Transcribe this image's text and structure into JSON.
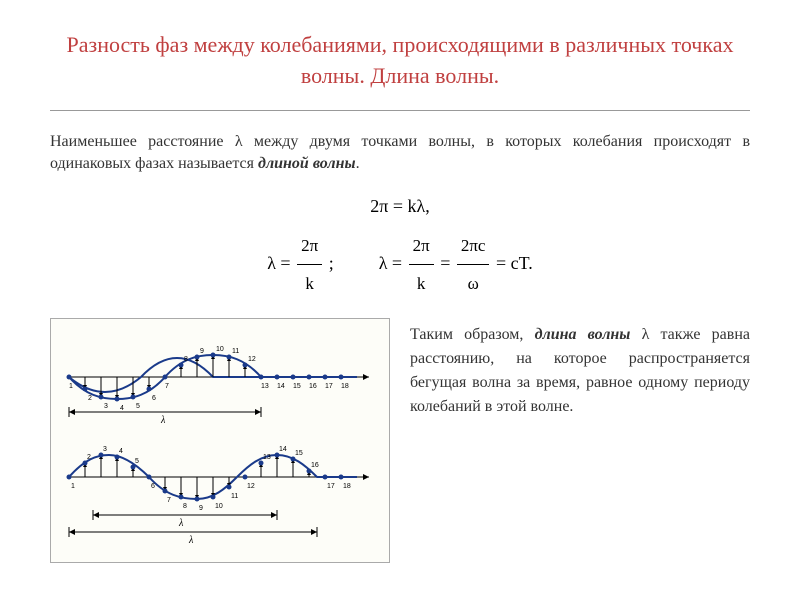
{
  "title": "Разность фаз между колебаниями, происходящими в различных точках волны. Длина волны.",
  "definition": {
    "prefix": "Наименьшее расстояние λ между двумя точками волны, в которых колебания происходят в одинаковых фазах называется ",
    "term": "длиной волны",
    "suffix": "."
  },
  "formulas": {
    "line1": "2π = kλ,",
    "line2_lambda": "λ = ",
    "line2_sep": ";",
    "line2_sep2": " = ",
    "line2_end": " = cT.",
    "frac1_num": "2π",
    "frac1_den": "k",
    "frac2_num": "2π",
    "frac2_den": "k",
    "frac3_num": "2πc",
    "frac3_den": "ω"
  },
  "side_text": {
    "prefix": "Таким образом, ",
    "term": "длина волны",
    "body": " λ также равна расстоянию, на которое распространяется бегущая волна за время, равное одному периоду колебаний в этой волне."
  },
  "wave": {
    "line_color": "#1a3a8a",
    "dot_color": "#1a3a8a",
    "axis_color": "#000000",
    "wave_amplitude": 22,
    "wave1_points": 18,
    "wave2_points": 18,
    "lambda_symbol": "λ"
  }
}
